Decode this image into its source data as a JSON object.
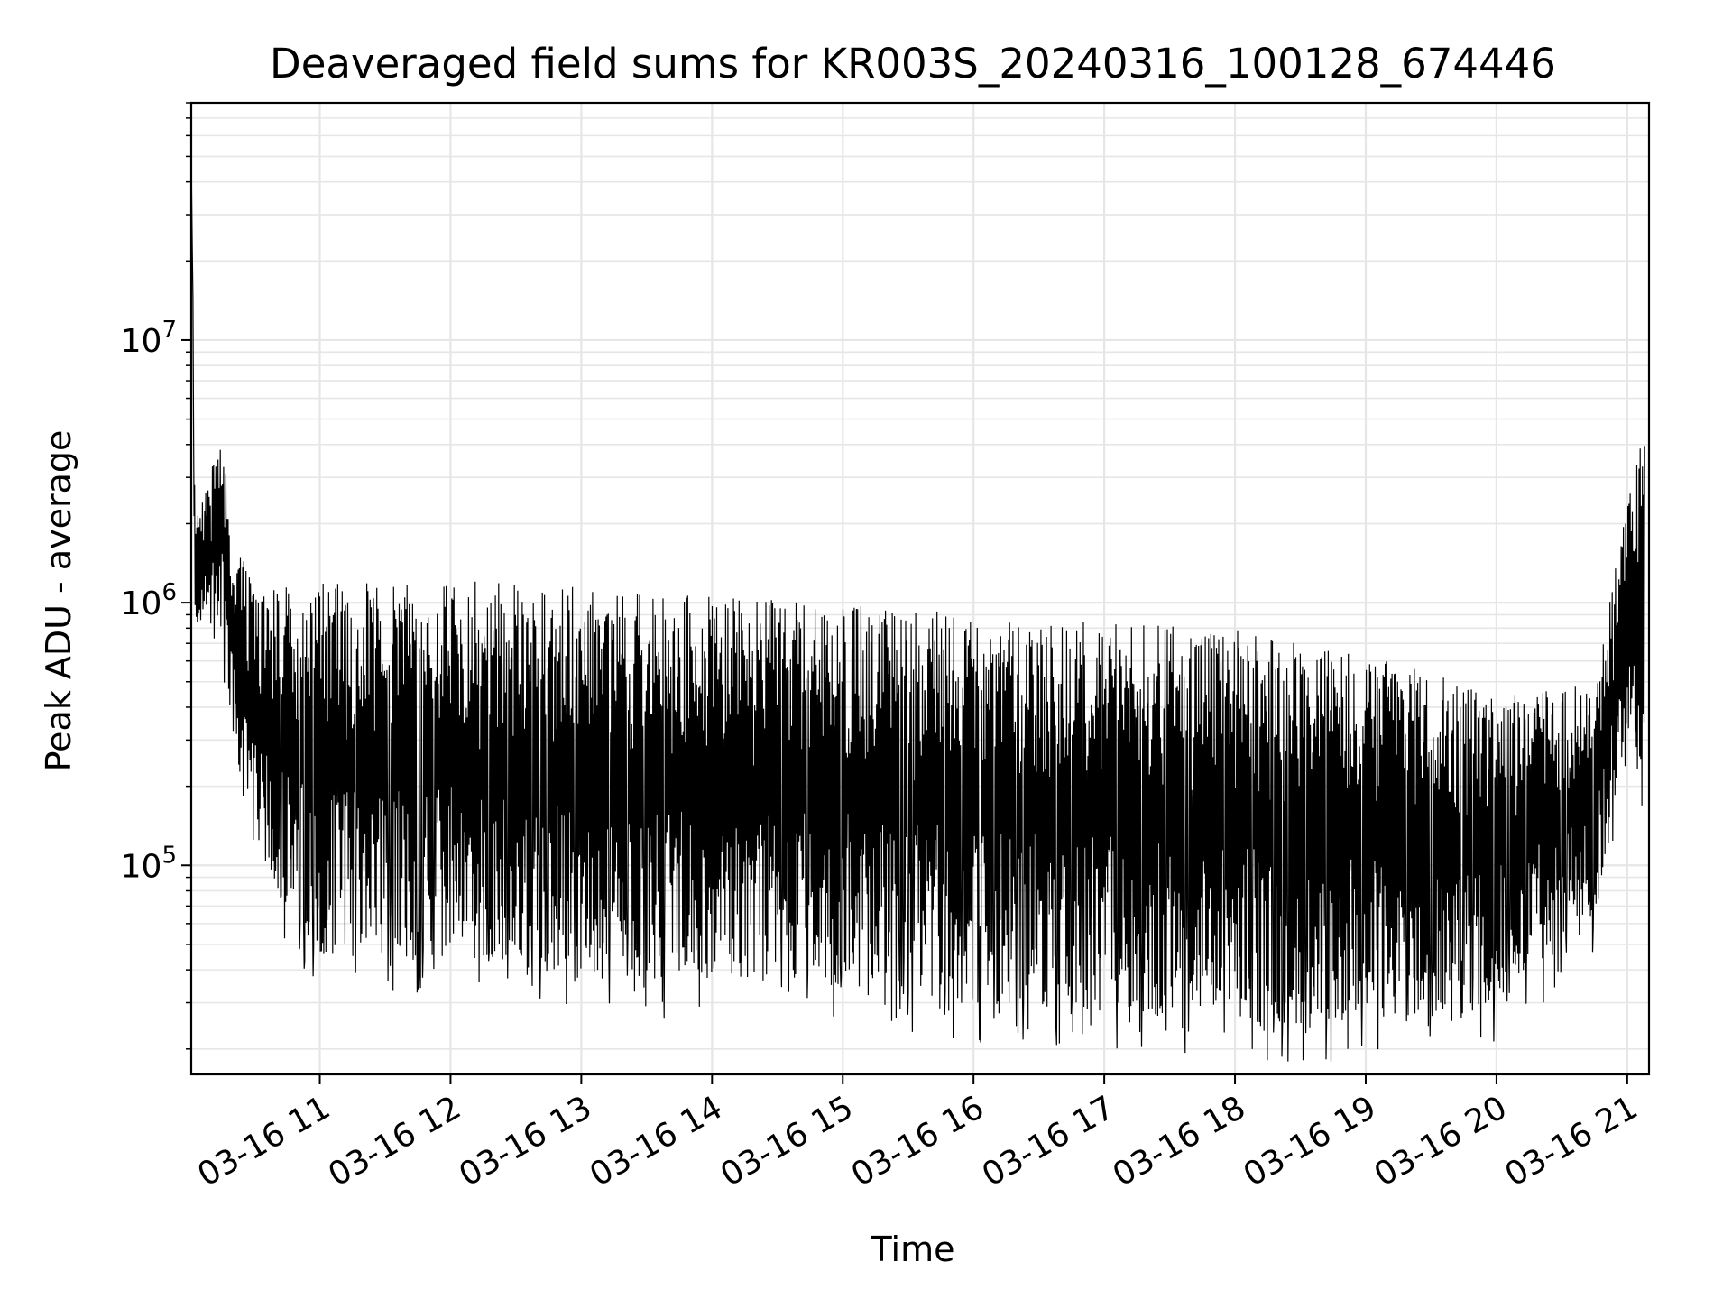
{
  "chart_data": {
    "type": "line",
    "title": "Deaveraged field sums for KR003S_20240316_100128_674446",
    "xlabel": "Time",
    "ylabel": "Peak ADU - average",
    "yscale": "log",
    "ylim": [
      16000,
      80000000
    ],
    "xlim": [
      "2024-03-16 10:01",
      "2024-03-16 21:10"
    ],
    "grid": true,
    "legend": "none",
    "line_color": "#000000",
    "x_ticks": [
      {
        "value": "2024-03-16 11:00",
        "label": "03-16 11"
      },
      {
        "value": "2024-03-16 12:00",
        "label": "03-16 12"
      },
      {
        "value": "2024-03-16 13:00",
        "label": "03-16 13"
      },
      {
        "value": "2024-03-16 14:00",
        "label": "03-16 14"
      },
      {
        "value": "2024-03-16 15:00",
        "label": "03-16 15"
      },
      {
        "value": "2024-03-16 16:00",
        "label": "03-16 16"
      },
      {
        "value": "2024-03-16 17:00",
        "label": "03-16 17"
      },
      {
        "value": "2024-03-16 18:00",
        "label": "03-16 18"
      },
      {
        "value": "2024-03-16 19:00",
        "label": "03-16 19"
      },
      {
        "value": "2024-03-16 20:00",
        "label": "03-16 20"
      },
      {
        "value": "2024-03-16 21:00",
        "label": "03-16 21"
      }
    ],
    "y_ticks": [
      {
        "value": 100000,
        "base": "10",
        "exp": "5"
      },
      {
        "value": 1000000,
        "base": "10",
        "exp": "6"
      },
      {
        "value": 10000000,
        "base": "10",
        "exp": "7"
      }
    ],
    "series": [
      {
        "values_summary": "dense oscillating trace",
        "envelope": [
          {
            "t": "2024-03-16 10:01",
            "upper": 50000000,
            "lower": 1200000
          },
          {
            "t": "2024-03-16 10:03",
            "upper": 2000000,
            "lower": 800000
          },
          {
            "t": "2024-03-16 10:15",
            "upper": 4400000,
            "lower": 700000
          },
          {
            "t": "2024-03-16 10:20",
            "upper": 1900000,
            "lower": 300000
          },
          {
            "t": "2024-03-16 10:30",
            "upper": 1100000,
            "lower": 110000
          },
          {
            "t": "2024-03-16 11:00",
            "upper": 1200000,
            "lower": 45000
          },
          {
            "t": "2024-03-16 12:00",
            "upper": 1250000,
            "lower": 45000
          },
          {
            "t": "2024-03-16 13:00",
            "upper": 1150000,
            "lower": 40000
          },
          {
            "t": "2024-03-16 14:00",
            "upper": 1050000,
            "lower": 35000
          },
          {
            "t": "2024-03-16 15:00",
            "upper": 1000000,
            "lower": 35000
          },
          {
            "t": "2024-03-16 16:00",
            "upper": 900000,
            "lower": 30000
          },
          {
            "t": "2024-03-16 17:00",
            "upper": 850000,
            "lower": 28000
          },
          {
            "t": "2024-03-16 18:00",
            "upper": 800000,
            "lower": 25000
          },
          {
            "t": "2024-03-16 19:00",
            "upper": 650000,
            "lower": 25000
          },
          {
            "t": "2024-03-16 20:00",
            "upper": 450000,
            "lower": 30000
          },
          {
            "t": "2024-03-16 20:45",
            "upper": 500000,
            "lower": 60000
          },
          {
            "t": "2024-03-16 21:00",
            "upper": 2500000,
            "lower": 300000
          },
          {
            "t": "2024-03-16 21:08",
            "upper": 4800000,
            "lower": 150000
          }
        ]
      }
    ]
  }
}
